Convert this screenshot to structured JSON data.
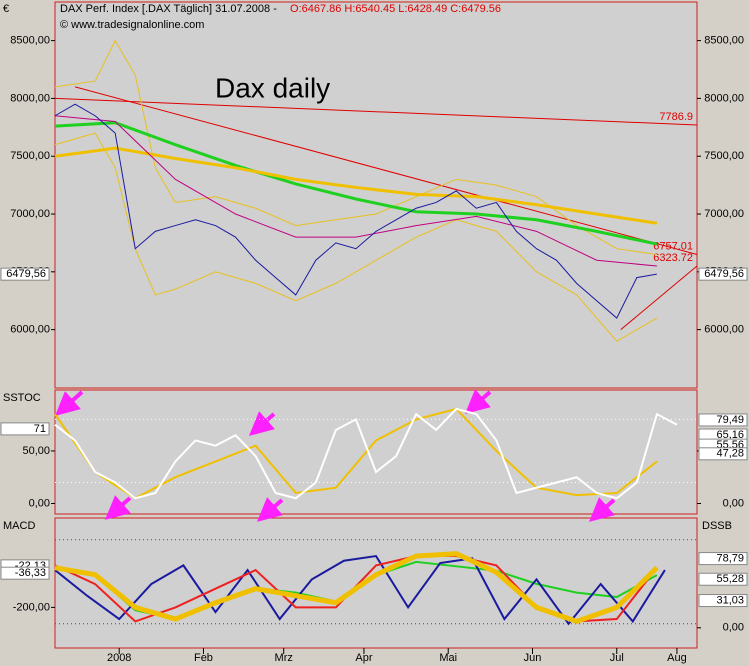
{
  "header": {
    "title": "DAX Perf. Index [.DAX  Täglich] 31.07.2008 -",
    "ohlc": "O:6467.86 H:6540.45 L:6428.49 C:6479.56",
    "copyright": "© www.tradesignalonline.com"
  },
  "chart_data": [
    {
      "type": "line",
      "label": "€",
      "annotation": "Dax daily",
      "xlim": [
        0,
        160
      ],
      "xticks": [
        {
          "value": 16,
          "label": "2008"
        },
        {
          "value": 37,
          "label": "Feb"
        },
        {
          "value": 57,
          "label": "Mrz"
        },
        {
          "value": 77,
          "label": "Apr"
        },
        {
          "value": 98,
          "label": "Mai"
        },
        {
          "value": 119,
          "label": "Jun"
        },
        {
          "value": 140,
          "label": "Jul"
        },
        {
          "value": 155,
          "label": "Aug"
        }
      ],
      "ylim": [
        5495,
        8834
      ],
      "yticks": [
        {
          "value": 6000,
          "label": "6000,00"
        },
        {
          "value": 6500,
          "label": "6500,00"
        },
        {
          "value": 7000,
          "label": "7000,00"
        },
        {
          "value": 7500,
          "label": "7500,00"
        },
        {
          "value": 8000,
          "label": "8000,00"
        },
        {
          "value": 8500,
          "label": "8500,00"
        }
      ],
      "last_value": {
        "value": 6479.56,
        "label": "6479,56"
      },
      "series": [
        {
          "color": "#e8c020",
          "line_width": 1,
          "x": [
            0,
            10,
            15,
            20,
            25,
            30,
            40,
            50,
            60,
            70,
            80,
            90,
            100,
            110,
            120,
            130,
            140,
            150
          ],
          "values": [
            8100,
            8150,
            8500,
            8200,
            7400,
            7100,
            7150,
            7050,
            6900,
            6950,
            7000,
            7150,
            7300,
            7250,
            7150,
            6900,
            6700,
            6650
          ]
        },
        {
          "color": "#e8c020",
          "line_width": 1,
          "x": [
            0,
            10,
            15,
            20,
            25,
            30,
            40,
            50,
            60,
            70,
            80,
            90,
            100,
            110,
            120,
            130,
            140,
            150
          ],
          "values": [
            7600,
            7700,
            7400,
            6700,
            6300,
            6350,
            6500,
            6400,
            6250,
            6400,
            6600,
            6800,
            6950,
            6850,
            6500,
            6300,
            5900,
            6100
          ]
        },
        {
          "color": "#20d020",
          "line_width": 3,
          "x": [
            0,
            15,
            30,
            45,
            60,
            75,
            90,
            105,
            120,
            135,
            150
          ],
          "values": [
            7760,
            7790,
            7600,
            7420,
            7260,
            7130,
            7020,
            7000,
            6950,
            6850,
            6740
          ]
        },
        {
          "color": "#f0c000",
          "line_width": 3,
          "x": [
            0,
            15,
            30,
            45,
            60,
            75,
            90,
            105,
            120,
            135,
            150
          ],
          "values": [
            7500,
            7570,
            7480,
            7400,
            7300,
            7230,
            7170,
            7150,
            7080,
            7000,
            6920
          ]
        },
        {
          "color": "#c00080",
          "line_width": 1,
          "x": [
            0,
            15,
            30,
            45,
            60,
            75,
            90,
            105,
            120,
            135,
            150
          ],
          "values": [
            7850,
            7800,
            7300,
            7000,
            6800,
            6800,
            6900,
            6980,
            6850,
            6600,
            6550
          ]
        },
        {
          "color": "#1a1aa0",
          "line_width": 1,
          "x": [
            0,
            5,
            10,
            15,
            20,
            25,
            30,
            35,
            40,
            45,
            50,
            55,
            60,
            65,
            70,
            75,
            80,
            85,
            90,
            95,
            100,
            105,
            110,
            115,
            120,
            125,
            130,
            135,
            140,
            145,
            150
          ],
          "values": [
            7850,
            7950,
            7850,
            7700,
            6700,
            6850,
            6900,
            6950,
            6900,
            6800,
            6600,
            6450,
            6300,
            6600,
            6750,
            6700,
            6850,
            6950,
            7050,
            7100,
            7200,
            7050,
            7100,
            6850,
            6700,
            6600,
            6400,
            6250,
            6100,
            6450,
            6480
          ]
        }
      ],
      "trendlines": [
        {
          "x": [
            0,
            160
          ],
          "values": [
            8000,
            7770
          ],
          "label": "7786.9"
        },
        {
          "x": [
            5,
            160
          ],
          "values": [
            8100,
            6650
          ],
          "label": "6757.01"
        },
        {
          "x": [
            141,
            160
          ],
          "values": [
            6000,
            6550
          ],
          "label": "6323.72"
        }
      ]
    },
    {
      "type": "line",
      "label": "SSTOC",
      "ylim": [
        -10,
        108
      ],
      "yticks": [
        {
          "value": 0,
          "label": "0,00"
        },
        {
          "value": 50,
          "label": "50,00"
        }
      ],
      "levels": [
        20,
        80
      ],
      "left_labels": [
        {
          "value": 71,
          "label": "71"
        }
      ],
      "right_labels": [
        {
          "value": 79.49,
          "label": "79,49"
        },
        {
          "value": 65.16,
          "label": "65,16"
        },
        {
          "value": 55.56,
          "label": "55,56"
        },
        {
          "value": 47.28,
          "label": "47,28"
        }
      ],
      "series": [
        {
          "color": "#f0c000",
          "line_width": 2,
          "x": [
            0,
            10,
            20,
            30,
            40,
            50,
            60,
            70,
            80,
            90,
            100,
            110,
            120,
            130,
            140,
            150
          ],
          "values": [
            85,
            30,
            5,
            25,
            40,
            55,
            10,
            15,
            60,
            80,
            90,
            50,
            15,
            8,
            10,
            40
          ]
        },
        {
          "color": "#ffffff",
          "line_width": 2,
          "x": [
            0,
            5,
            10,
            15,
            20,
            25,
            30,
            35,
            40,
            45,
            50,
            55,
            60,
            65,
            70,
            75,
            80,
            85,
            90,
            95,
            100,
            105,
            110,
            115,
            120,
            125,
            130,
            135,
            140,
            145,
            150,
            155
          ],
          "values": [
            75,
            60,
            30,
            20,
            5,
            10,
            40,
            60,
            55,
            65,
            45,
            10,
            5,
            20,
            70,
            80,
            30,
            45,
            85,
            70,
            90,
            85,
            60,
            10,
            15,
            20,
            25,
            10,
            5,
            20,
            85,
            75
          ]
        }
      ]
    },
    {
      "type": "line",
      "label": "MACD",
      "label2": "DSSB",
      "ylim": [
        -374,
        183
      ],
      "yticks": [
        {
          "value": -200,
          "label": "-200,00"
        }
      ],
      "y2lim": [
        -23,
        125
      ],
      "y2ticks": [
        {
          "value": 0,
          "label": "0,00"
        }
      ],
      "levels": [
        90,
        -270
      ],
      "left_labels": [
        {
          "value": -22.13,
          "label": "-22,13"
        },
        {
          "value": -36.33,
          "label": "-36,33"
        }
      ],
      "right_labels": [
        {
          "value": 78.79,
          "label": "78,79"
        },
        {
          "value": 55.28,
          "label": "55,28"
        },
        {
          "value": 31.03,
          "label": "31,03"
        }
      ],
      "series": [
        {
          "color": "#20d020",
          "line_width": 2,
          "axis": "y2",
          "x": [
            0,
            10,
            20,
            30,
            40,
            50,
            60,
            70,
            80,
            90,
            100,
            110,
            120,
            130,
            140,
            150
          ],
          "values": [
            70,
            60,
            20,
            10,
            30,
            45,
            40,
            30,
            60,
            75,
            70,
            65,
            50,
            40,
            35,
            60
          ]
        },
        {
          "color": "#1a1aa0",
          "line_width": 2,
          "x": [
            0,
            8,
            16,
            24,
            32,
            40,
            48,
            56,
            64,
            72,
            80,
            88,
            96,
            104,
            112,
            120,
            128,
            136,
            144,
            152
          ],
          "values": [
            -40,
            -150,
            -250,
            -100,
            -20,
            -220,
            -40,
            -250,
            -80,
            0,
            20,
            -200,
            -10,
            10,
            -250,
            -80,
            -270,
            -100,
            -260,
            -40
          ]
        },
        {
          "color": "#ee2020",
          "line_width": 2,
          "x": [
            0,
            10,
            20,
            30,
            40,
            50,
            60,
            70,
            80,
            90,
            100,
            110,
            120,
            130,
            140,
            150
          ],
          "values": [
            -20,
            -100,
            -260,
            -200,
            -120,
            -40,
            -200,
            -200,
            -20,
            20,
            20,
            -20,
            -200,
            -260,
            -250,
            -30
          ]
        },
        {
          "color": "#f0c000",
          "line_width": 5,
          "x": [
            0,
            10,
            20,
            30,
            40,
            50,
            60,
            70,
            80,
            90,
            100,
            110,
            120,
            130,
            140,
            150
          ],
          "values": [
            -30,
            -60,
            -200,
            -250,
            -180,
            -120,
            -150,
            -180,
            -60,
            20,
            30,
            -50,
            -200,
            -260,
            -200,
            -30
          ]
        }
      ]
    }
  ]
}
